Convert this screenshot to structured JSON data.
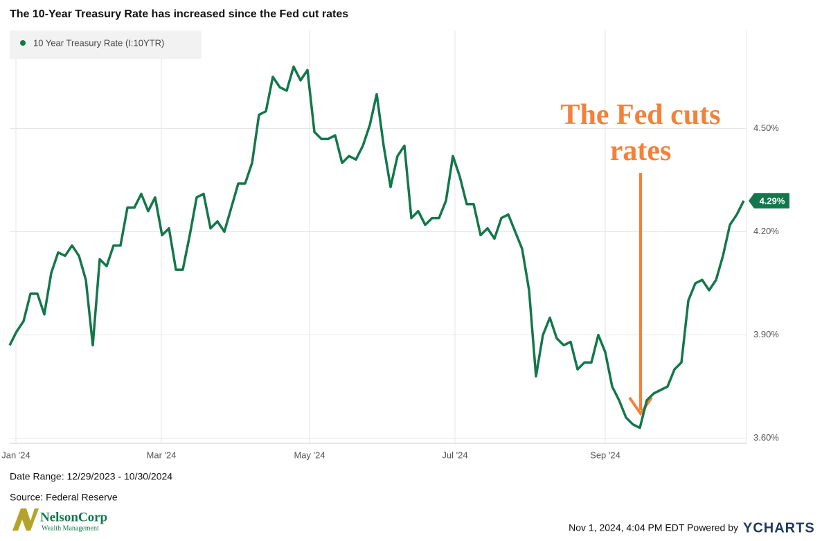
{
  "chart_data": {
    "type": "line",
    "title": "The 10-Year Treasury Rate has increased since the Fed cut rates",
    "series": [
      {
        "name": "10 Year Treasury Rate (I:10YTR)",
        "color": "#13774c",
        "values": [
          3.87,
          3.91,
          3.94,
          4.02,
          4.02,
          3.96,
          4.08,
          4.14,
          4.13,
          4.16,
          4.13,
          4.06,
          3.87,
          4.12,
          4.1,
          4.16,
          4.16,
          4.27,
          4.27,
          4.31,
          4.26,
          4.3,
          4.19,
          4.21,
          4.09,
          4.09,
          4.19,
          4.3,
          4.31,
          4.21,
          4.23,
          4.2,
          4.27,
          4.34,
          4.34,
          4.4,
          4.54,
          4.55,
          4.65,
          4.62,
          4.61,
          4.68,
          4.64,
          4.67,
          4.49,
          4.47,
          4.47,
          4.48,
          4.4,
          4.42,
          4.41,
          4.45,
          4.51,
          4.6,
          4.45,
          4.33,
          4.42,
          4.45,
          4.24,
          4.26,
          4.22,
          4.24,
          4.24,
          4.29,
          4.42,
          4.36,
          4.28,
          4.28,
          4.19,
          4.21,
          4.18,
          4.24,
          4.25,
          4.2,
          4.15,
          4.03,
          3.78,
          3.9,
          3.95,
          3.89,
          3.87,
          3.88,
          3.8,
          3.82,
          3.82,
          3.9,
          3.85,
          3.75,
          3.71,
          3.66,
          3.64,
          3.63,
          3.71,
          3.73,
          3.74,
          3.75,
          3.8,
          3.82,
          4.0,
          4.05,
          4.06,
          4.03,
          4.06,
          4.13,
          4.22,
          4.25,
          4.29
        ],
        "value_labels": [
          null,
          null,
          null,
          null,
          null,
          null,
          null,
          null,
          null,
          null,
          null,
          null,
          null,
          null,
          null,
          null,
          null,
          null,
          null,
          null,
          null,
          null,
          null,
          null,
          null,
          null,
          null,
          null,
          null,
          null,
          null,
          null,
          null,
          null,
          null,
          null,
          null,
          null,
          null,
          null,
          null,
          null,
          null,
          null,
          null,
          null,
          null,
          null,
          null,
          null,
          null,
          null,
          null,
          null,
          null,
          null,
          null,
          null,
          null,
          null,
          null,
          null,
          null,
          null,
          null,
          null,
          null,
          null,
          null,
          null,
          null,
          null,
          null,
          null,
          null,
          null,
          null,
          null,
          null,
          null,
          null,
          null,
          null,
          null,
          null,
          null,
          null,
          null,
          null,
          null,
          null,
          null,
          null,
          null,
          null,
          null,
          null,
          null,
          null,
          null,
          null,
          null,
          null,
          null,
          null,
          null,
          "4.29%"
        ]
      }
    ],
    "xlim": [
      0,
      106.4
    ],
    "xticks": [
      {
        "value": 0.9,
        "label": "Jan '24"
      },
      {
        "value": 21.9,
        "label": "Mar '24"
      },
      {
        "value": 43.3,
        "label": "May '24"
      },
      {
        "value": 64.3,
        "label": "Jul '24"
      },
      {
        "value": 86,
        "label": "Sep '24"
      }
    ],
    "ylim": [
      3.585,
      4.785
    ],
    "yticks": [
      {
        "value": 3.6,
        "label": "3.60%"
      },
      {
        "value": 3.9,
        "label": "3.90%"
      },
      {
        "value": 4.2,
        "label": "4.20%"
      },
      {
        "value": 4.5,
        "label": "4.50%"
      }
    ],
    "grid": true,
    "legend": "top-left",
    "annotation": {
      "text": "The Fed cuts rates",
      "color": "#f5803a"
    },
    "date_range": "Date Range: 12/29/2023 - 10/30/2024",
    "source": "Source: Federal Reserve",
    "timestamp": "Nov 1, 2024, 4:04 PM EDT Powered by",
    "brand": "YCHARTS",
    "logo": {
      "name": "NelsonCorp",
      "tagline": "Wealth Management"
    }
  }
}
